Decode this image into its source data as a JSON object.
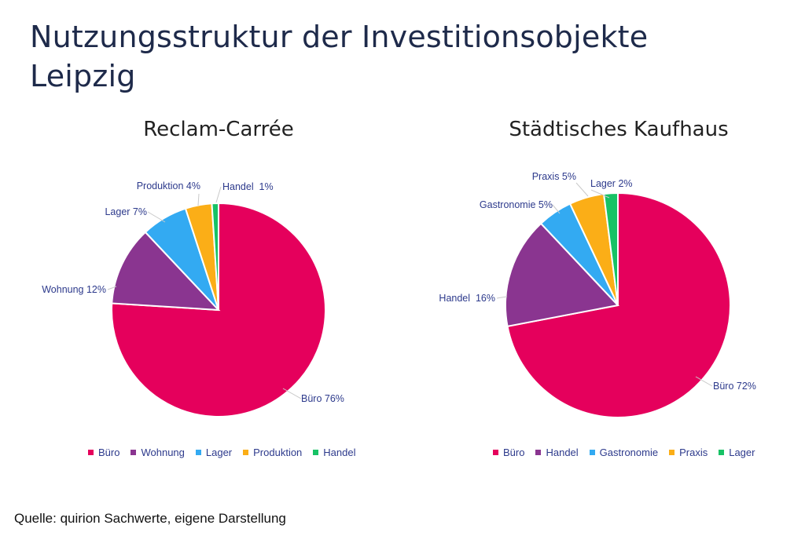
{
  "title": "Nutzungsstruktur der Investitionsobjekte Leipzig",
  "source": "Quelle: quirion Sachwerte, eigene Darstellung",
  "colors": {
    "buero": "#e5005c",
    "wohnung": "#8a3590",
    "handel_purple": "#8a3590",
    "lager_blue": "#33aaf2",
    "gastronomie": "#33aaf2",
    "produktion": "#fbae17",
    "praxis": "#fbae17",
    "green": "#17c265"
  },
  "chart_data": [
    {
      "type": "pie",
      "title": "Reclam-Carrée",
      "slices": [
        {
          "label": "Büro",
          "value": 76,
          "display": "Büro 76%",
          "color": "#e5005c"
        },
        {
          "label": "Wohnung",
          "value": 12,
          "display": "Wohnung 12%",
          "color": "#8a3590"
        },
        {
          "label": "Lager",
          "value": 7,
          "display": "Lager 7%",
          "color": "#33aaf2"
        },
        {
          "label": "Produktion",
          "value": 4,
          "display": "Produktion 4%",
          "color": "#fbae17"
        },
        {
          "label": "Handel",
          "value": 1,
          "display": "Handel  1%",
          "color": "#17c265"
        }
      ],
      "legend": [
        "Büro",
        "Wohnung",
        "Lager",
        "Produktion",
        "Handel"
      ],
      "legend_position": "bottom"
    },
    {
      "type": "pie",
      "title": "Städtisches Kaufhaus",
      "slices": [
        {
          "label": "Büro",
          "value": 72,
          "display": "Büro 72%",
          "color": "#e5005c"
        },
        {
          "label": "Handel",
          "value": 16,
          "display": "Handel  16%",
          "color": "#8a3590"
        },
        {
          "label": "Gastronomie",
          "value": 5,
          "display": "Gastronomie 5%",
          "color": "#33aaf2"
        },
        {
          "label": "Praxis",
          "value": 5,
          "display": "Praxis 5%",
          "color": "#fbae17"
        },
        {
          "label": "Lager",
          "value": 2,
          "display": "Lager 2%",
          "color": "#17c265"
        }
      ],
      "legend": [
        "Büro",
        "Handel",
        "Gastronomie",
        "Praxis",
        "Lager"
      ],
      "legend_position": "bottom"
    }
  ]
}
